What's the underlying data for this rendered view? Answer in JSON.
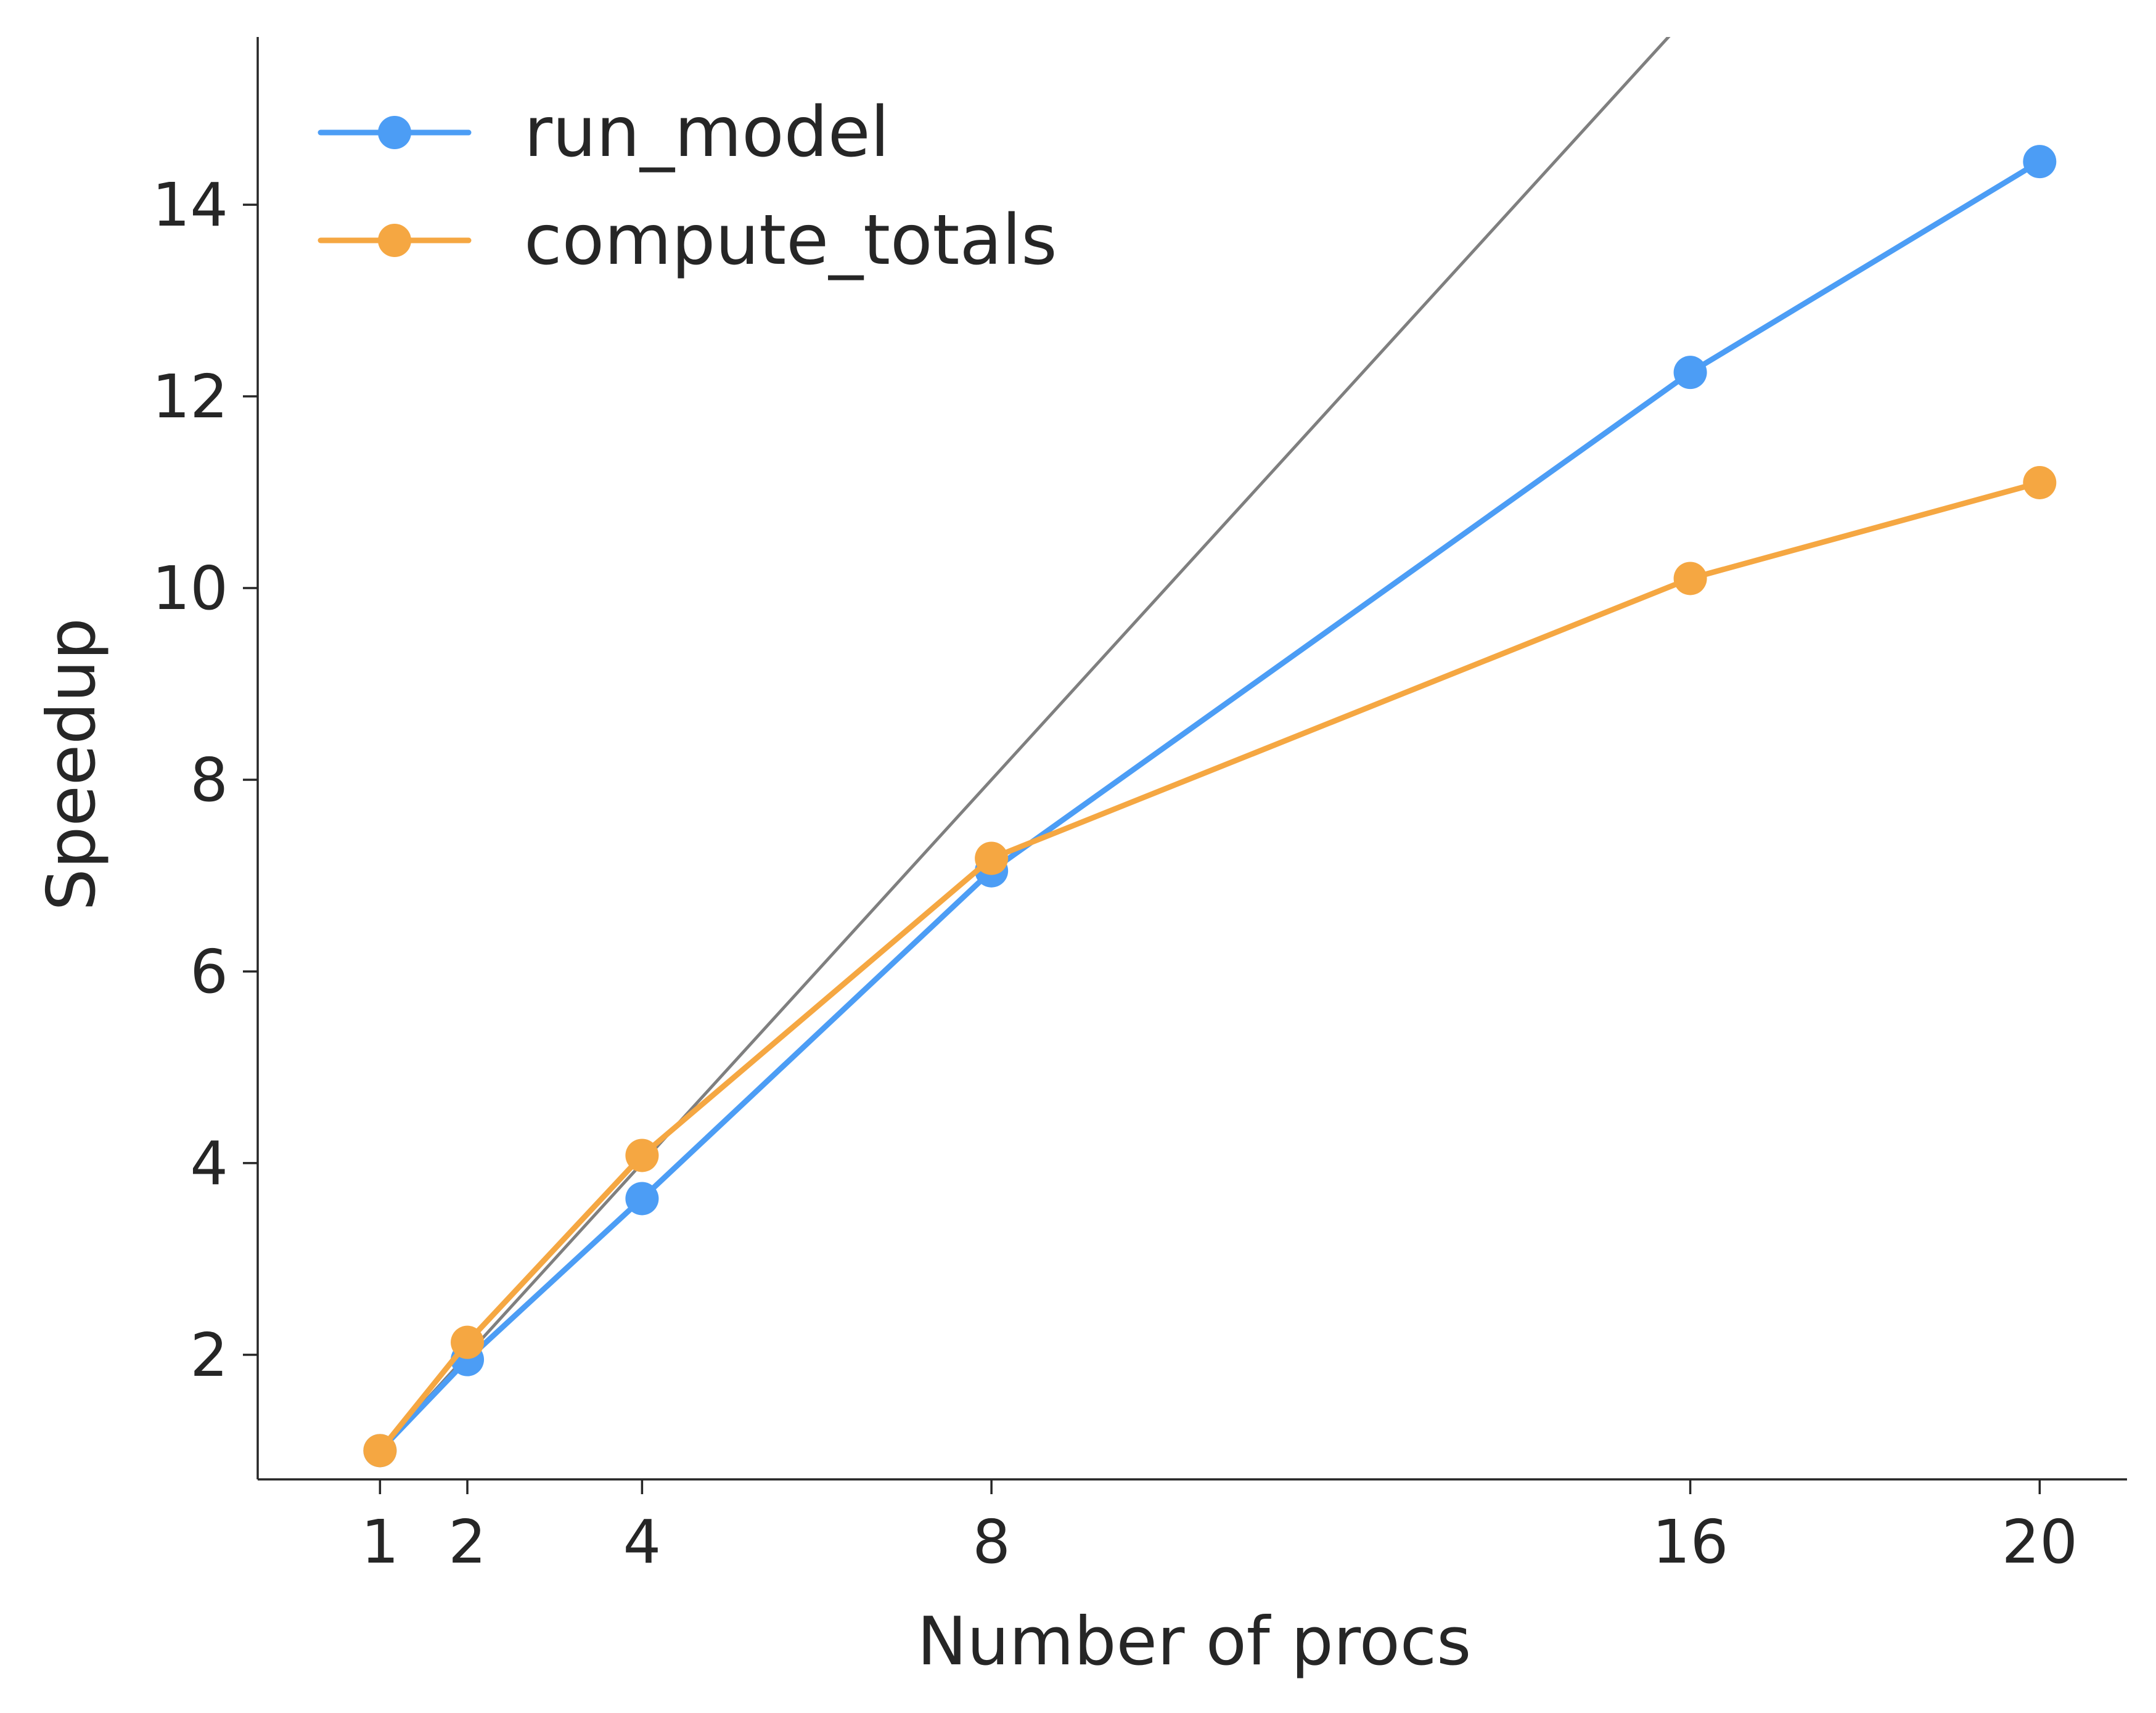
{
  "chart_data": {
    "type": "line",
    "xlabel": "Number of procs",
    "ylabel": "Speedup",
    "xlim": [
      -0.4,
      21.0
    ],
    "ylim": [
      0.7,
      15.75
    ],
    "x_ticks": [
      1,
      2,
      4,
      8,
      16,
      20
    ],
    "y_ticks": [
      2,
      4,
      6,
      8,
      10,
      12,
      14
    ],
    "grid": false,
    "legend_position": "top-left",
    "reference_line": {
      "x": [
        1,
        16
      ],
      "y": [
        1,
        16
      ],
      "color": "#7f7f7f"
    },
    "series": [
      {
        "name": "run_model",
        "color": "#4c9df5",
        "x": [
          1,
          2,
          4,
          8,
          16,
          20
        ],
        "y": [
          1.0,
          1.95,
          3.63,
          7.05,
          12.25,
          14.45
        ]
      },
      {
        "name": "compute_totals",
        "color": "#f5a742",
        "x": [
          1,
          2,
          4,
          8,
          16,
          20
        ],
        "y": [
          1.0,
          2.13,
          4.08,
          7.18,
          10.1,
          11.1
        ]
      }
    ]
  }
}
